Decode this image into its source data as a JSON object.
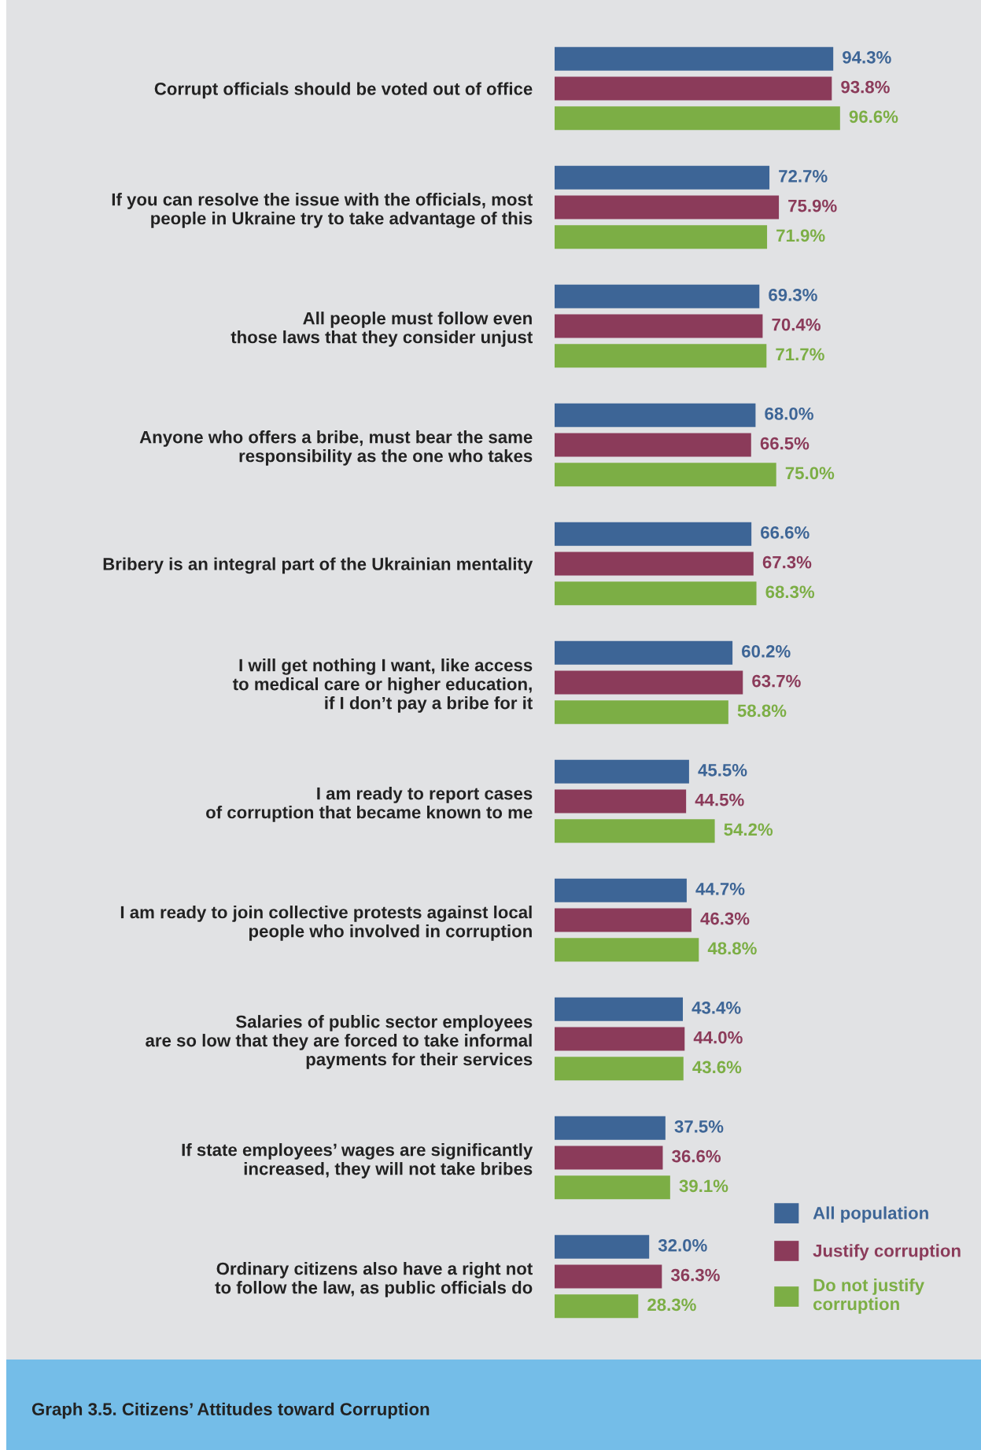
{
  "chart_data": {
    "type": "bar",
    "orientation": "horizontal",
    "title": "Graph 3.5. Citizens’ Attitudes toward Corruption",
    "categories": [
      "Corrupt officials should be voted out of office",
      "If you can resolve the issue with the officials, most\npeople in Ukraine try to take advantage of this",
      "All people must follow even\nthose laws that they consider unjust",
      "Anyone who offers a bribe, must bear the same\nresponsibility as the one who takes",
      "Bribery is an integral part of the Ukrainian mentality",
      "I will get nothing I want, like access\nto medical care or higher education,\nif I don’t pay a bribe for it",
      "I am ready to report cases\nof corruption that became known to me",
      "I am ready to join collective protests against local\npeople who involved in corruption",
      "Salaries of public sector employees\nare so low that they are forced to take informal\npayments for their services",
      "If state employees’ wages are significantly\nincreased, they will not take bribes",
      "Ordinary citizens also have a right not\nto follow the law, as public officials do"
    ],
    "series": [
      {
        "name": "All population",
        "color": "#3d6596",
        "values": [
          94.3,
          72.7,
          69.3,
          68.0,
          66.6,
          60.2,
          45.5,
          44.7,
          43.4,
          37.5,
          32.0
        ],
        "value_labels": [
          "94.3%",
          "72.7%",
          "69.3%",
          "68.0%",
          "66.6%",
          "60.2%",
          "45.5%",
          "44.7%",
          "43.4%",
          "37.5%",
          "32.0%"
        ]
      },
      {
        "name": "Justify corruption",
        "color": "#8b3b5a",
        "values": [
          93.8,
          75.9,
          70.4,
          66.5,
          67.3,
          63.7,
          44.5,
          46.3,
          44.0,
          36.6,
          36.3
        ],
        "value_labels": [
          "93.8%",
          "75.9%",
          "70.4%",
          "66.5%",
          "67.3%",
          "63.7%",
          "44.5%",
          "46.3%",
          "44.0%",
          "36.6%",
          "36.3%"
        ]
      },
      {
        "name": "Do not justify\ncorruption",
        "color": "#7cae45",
        "values": [
          96.6,
          71.9,
          71.7,
          75.0,
          68.3,
          58.8,
          54.2,
          48.8,
          43.6,
          39.1,
          28.3
        ],
        "value_labels": [
          "96.6%",
          "71.9%",
          "71.7%",
          "75.0%",
          "68.3%",
          "58.8%",
          "54.2%",
          "48.8%",
          "43.6%",
          "39.1%",
          "28.3%"
        ]
      }
    ],
    "legend": "bottom right",
    "grid": false,
    "tick_labels": "y"
  }
}
